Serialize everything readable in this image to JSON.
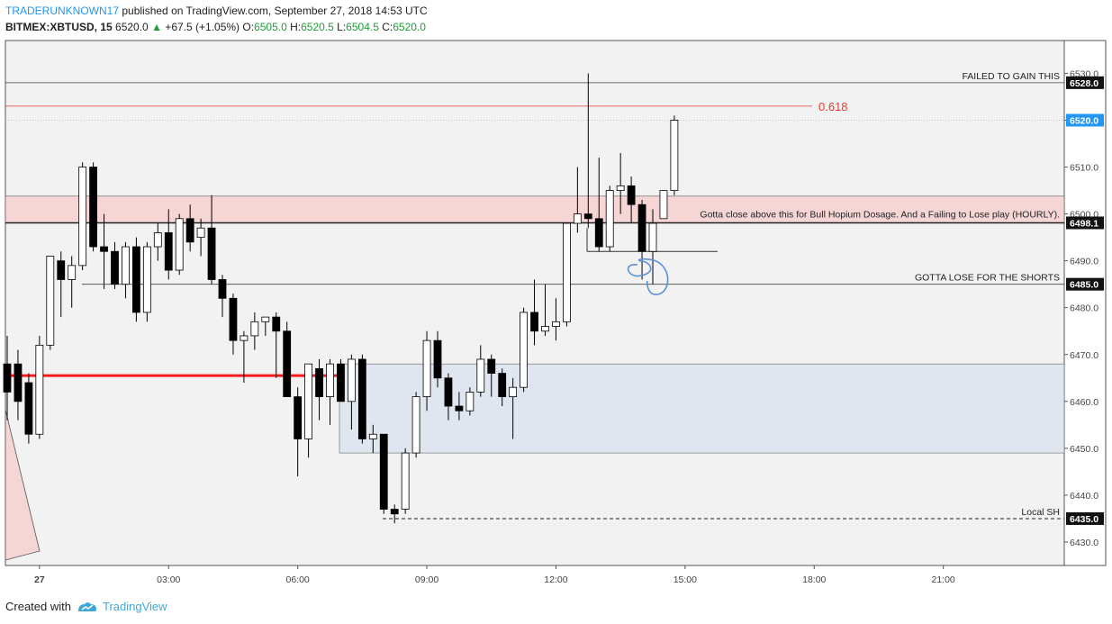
{
  "header": {
    "author": "TRADERUNKNOWN17",
    "published": "published on TradingView.com, September 27, 2018 14:53 UTC",
    "symbol": "BITMEX:XBTUSD, 15",
    "last": "6520.0",
    "arrow": "▲",
    "change": "+67.5 (+1.05%)",
    "o_label": "O:",
    "o": "6505.0",
    "h_label": "H:",
    "h": "6520.5",
    "l_label": "L:",
    "l": "6504.5",
    "c_label": "C:",
    "c": "6520.0"
  },
  "footer": {
    "created": "Created with",
    "brand": "TradingView"
  },
  "colors": {
    "bg": "#f2f2f2",
    "up_fill": "#ffffff",
    "down_fill": "#000000",
    "resistance_zone": "#f6d5d5",
    "support_zone": "#dfe6f0",
    "fib": "#e53935",
    "red_line": "#ff1a1a",
    "price_tag": "#2196f3"
  },
  "chart_data": {
    "type": "candlestick",
    "timeframe": "15",
    "ylim": [
      6425,
      6537
    ],
    "y_ticks": [
      6430,
      6440,
      6450,
      6460,
      6470,
      6480,
      6490,
      6500,
      6510,
      6520,
      6530
    ],
    "y_tick_labels": [
      "6430.0",
      "6440.0",
      "6450.0",
      "6460.0",
      "6470.0",
      "6480.0",
      "6490.0",
      "6500.0",
      "6510.0",
      "6520.0",
      "6530.0"
    ],
    "x_ticks": [
      {
        "label": "27",
        "bar": 3
      },
      {
        "label": "03:00",
        "bar": 15
      },
      {
        "label": "06:00",
        "bar": 27
      },
      {
        "label": "09:00",
        "bar": 39
      },
      {
        "label": "12:00",
        "bar": 51
      },
      {
        "label": "15:00",
        "bar": 63
      },
      {
        "label": "18:00",
        "bar": 75
      },
      {
        "label": "21:00",
        "bar": 87
      }
    ],
    "bars": [
      [
        6468,
        6474,
        6456,
        6462
      ],
      [
        6468,
        6471,
        6456,
        6460
      ],
      [
        6464,
        6466,
        6451,
        6453
      ],
      [
        6453,
        6474,
        6452,
        6472
      ],
      [
        6472,
        6491,
        6471,
        6491
      ],
      [
        6490,
        6492,
        6478,
        6486
      ],
      [
        6486,
        6491,
        6480,
        6489
      ],
      [
        6489,
        6511,
        6488,
        6510
      ],
      [
        6510,
        6511,
        6492,
        6493
      ],
      [
        6493,
        6500,
        6484,
        6492
      ],
      [
        6492,
        6494,
        6484,
        6485
      ],
      [
        6485,
        6494,
        6482,
        6493
      ],
      [
        6493,
        6495,
        6477,
        6479
      ],
      [
        6479,
        6494,
        6477,
        6493
      ],
      [
        6493,
        6498,
        6490,
        6496
      ],
      [
        6496,
        6501,
        6486,
        6488
      ],
      [
        6488,
        6500,
        6487,
        6499
      ],
      [
        6499,
        6502,
        6492,
        6494
      ],
      [
        6495,
        6499,
        6491,
        6497
      ],
      [
        6497,
        6504,
        6485,
        6486
      ],
      [
        6486,
        6487,
        6478,
        6482
      ],
      [
        6482,
        6483,
        6470,
        6473
      ],
      [
        6473,
        6475,
        6464,
        6474
      ],
      [
        6474,
        6479,
        6471,
        6477
      ],
      [
        6477,
        6478,
        6474,
        6478
      ],
      [
        6478,
        6479,
        6465,
        6475
      ],
      [
        6475,
        6477,
        6461,
        6461
      ],
      [
        6461,
        6463,
        6444,
        6452
      ],
      [
        6452,
        6468,
        6448,
        6468
      ],
      [
        6467,
        6469,
        6456,
        6461
      ],
      [
        6461,
        6469,
        6455,
        6468
      ],
      [
        6468,
        6469,
        6461,
        6460
      ],
      [
        6460,
        6470,
        6454,
        6469
      ],
      [
        6469,
        6470,
        6451,
        6452
      ],
      [
        6452,
        6455,
        6449,
        6453
      ],
      [
        6453,
        6453,
        6436,
        6437
      ],
      [
        6437,
        6438,
        6434,
        6436
      ],
      [
        6437,
        6450,
        6436,
        6449
      ],
      [
        6449,
        6462,
        6448,
        6461
      ],
      [
        6461,
        6475,
        6458,
        6473
      ],
      [
        6473,
        6475,
        6463,
        6465
      ],
      [
        6465,
        6466,
        6456,
        6459
      ],
      [
        6459,
        6462,
        6456,
        6458
      ],
      [
        6458,
        6463,
        6457,
        6462
      ],
      [
        6462,
        6472,
        6461,
        6469
      ],
      [
        6469,
        6470,
        6461,
        6466
      ],
      [
        6466,
        6467,
        6459,
        6461
      ],
      [
        6461,
        6465,
        6452,
        6463
      ],
      [
        6463,
        6480,
        6462,
        6479
      ],
      [
        6479,
        6486,
        6472,
        6475
      ],
      [
        6475,
        6485,
        6474,
        6476
      ],
      [
        6476,
        6482,
        6473,
        6477
      ],
      [
        6477,
        6498,
        6476,
        6498
      ],
      [
        6498,
        6510,
        6496,
        6500
      ],
      [
        6500,
        6530,
        6497,
        6499
      ],
      [
        6499,
        6512,
        6492,
        6493
      ],
      [
        6493,
        6506,
        6492,
        6505
      ],
      [
        6505,
        6513,
        6500,
        6506
      ],
      [
        6506,
        6508,
        6498,
        6502
      ],
      [
        6502,
        6503,
        6486,
        6492
      ],
      [
        6492,
        6501,
        6485,
        6498
      ],
      [
        6499,
        6504,
        6499,
        6505
      ],
      [
        6505,
        6521,
        6504,
        6520
      ]
    ],
    "levels": [
      {
        "price": 6528,
        "label": "FAILED TO GAIN THIS",
        "tag": "6528.0"
      },
      {
        "price": 6498.1,
        "label": "Gotta close above this for Bull Hopium Dosage. And a Failing to Lose play (HOURLY).",
        "tag": "6498.1"
      },
      {
        "price": 6485,
        "label": "GOTTA LOSE FOR THE SHORTS",
        "tag": "6485.0"
      },
      {
        "price": 6435,
        "label": "Local SH",
        "tag": "6435.0"
      }
    ],
    "fib": {
      "price": 6523,
      "label": "0.618"
    },
    "last_price": {
      "price": 6520,
      "tag": "6520.0"
    }
  }
}
